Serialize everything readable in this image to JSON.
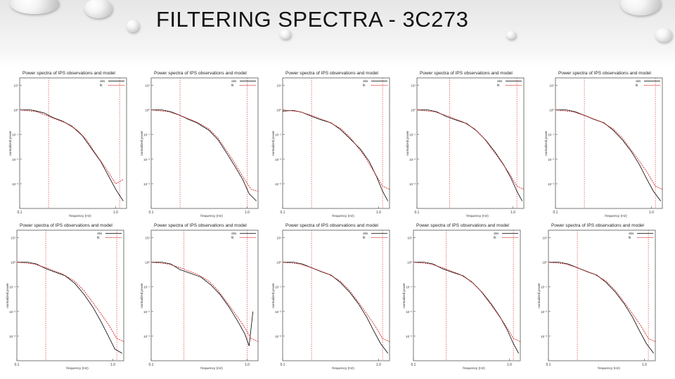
{
  "slide": {
    "title": "FILTERING SPECTRA - 3C273"
  },
  "legend": {
    "obs": "obs",
    "fit": "fit"
  },
  "colors": {
    "obs": "#000000",
    "fit": "#d42020",
    "frame": "#555555"
  },
  "common": {
    "plot_title": "Power spectra of IPS observations and model",
    "xlabel": "frequency (Hz)",
    "ylabel": "normalized power",
    "xtick_labels": [
      "0.1",
      "1.0"
    ]
  },
  "chart_data": [
    {
      "type": "line",
      "x_scale": "log",
      "y_scale": "log",
      "xlim": [
        0.1,
        1.3
      ],
      "ylim": [
        0.0001,
        20
      ],
      "ytick_labels": [
        "10¹",
        "10⁰",
        "10⁻¹",
        "10⁻²",
        "10⁻³"
      ],
      "cutoff_low": 0.2,
      "cutoff_high": 1.1,
      "series": [
        {
          "name": "obs",
          "x": [
            0.1,
            0.13,
            0.15,
            0.18,
            0.22,
            0.28,
            0.35,
            0.45,
            0.55,
            0.7,
            0.85,
            1.0,
            1.2
          ],
          "y": [
            1.0,
            1.0,
            0.9,
            0.75,
            0.5,
            0.35,
            0.22,
            0.09,
            0.03,
            0.008,
            0.002,
            0.0006,
            0.0002
          ]
        },
        {
          "name": "fit",
          "x": [
            0.1,
            0.15,
            0.2,
            0.3,
            0.4,
            0.5,
            0.6,
            0.8,
            1.0,
            1.2
          ],
          "y": [
            1.0,
            0.85,
            0.55,
            0.3,
            0.15,
            0.06,
            0.02,
            0.004,
            0.001,
            0.0015
          ]
        }
      ]
    },
    {
      "type": "line",
      "x_scale": "log",
      "y_scale": "log",
      "xlim": [
        0.1,
        1.3
      ],
      "ylim": [
        0.0001,
        20
      ],
      "ytick_labels": [
        "10¹",
        "10⁰",
        "10⁻¹",
        "10⁻²",
        "10⁻³"
      ],
      "cutoff_low": 0.2,
      "cutoff_high": 1.0,
      "series": [
        {
          "name": "obs",
          "x": [
            0.1,
            0.13,
            0.16,
            0.2,
            0.25,
            0.3,
            0.4,
            0.5,
            0.6,
            0.75,
            0.9,
            1.05,
            1.25
          ],
          "y": [
            1.0,
            1.0,
            0.85,
            0.6,
            0.4,
            0.3,
            0.15,
            0.06,
            0.02,
            0.005,
            0.0015,
            0.0004,
            0.0002
          ]
        },
        {
          "name": "fit",
          "x": [
            0.1,
            0.15,
            0.2,
            0.3,
            0.4,
            0.5,
            0.7,
            0.9,
            1.1,
            1.3
          ],
          "y": [
            1.0,
            0.85,
            0.6,
            0.32,
            0.17,
            0.07,
            0.01,
            0.002,
            0.0006,
            0.0005
          ]
        }
      ]
    },
    {
      "type": "line",
      "x_scale": "log",
      "y_scale": "log",
      "xlim": [
        0.1,
        1.3
      ],
      "ylim": [
        0.0001,
        20
      ],
      "ytick_labels": [
        "10¹",
        "10⁰",
        "10⁻¹",
        "10⁻²",
        "10⁻³"
      ],
      "cutoff_low": 0.2,
      "cutoff_high": 1.1,
      "series": [
        {
          "name": "obs",
          "x": [
            0.1,
            0.13,
            0.16,
            0.2,
            0.25,
            0.32,
            0.4,
            0.5,
            0.65,
            0.8,
            0.95,
            1.1,
            1.25
          ],
          "y": [
            0.9,
            0.95,
            0.8,
            0.55,
            0.4,
            0.3,
            0.16,
            0.07,
            0.025,
            0.008,
            0.002,
            0.0005,
            0.0002
          ]
        },
        {
          "name": "fit",
          "x": [
            0.1,
            0.15,
            0.2,
            0.3,
            0.4,
            0.5,
            0.7,
            0.9,
            1.1,
            1.3
          ],
          "y": [
            1.0,
            0.85,
            0.6,
            0.33,
            0.18,
            0.08,
            0.015,
            0.003,
            0.0008,
            0.0006
          ]
        }
      ]
    },
    {
      "type": "line",
      "x_scale": "log",
      "y_scale": "log",
      "xlim": [
        0.1,
        1.3
      ],
      "ylim": [
        0.0001,
        20
      ],
      "ytick_labels": [
        "10¹",
        "10⁰",
        "10⁻¹",
        "10⁻²",
        "10⁻³"
      ],
      "cutoff_low": 0.22,
      "cutoff_high": 1.1,
      "series": [
        {
          "name": "obs",
          "x": [
            0.1,
            0.13,
            0.16,
            0.2,
            0.26,
            0.33,
            0.42,
            0.52,
            0.65,
            0.8,
            0.95,
            1.1,
            1.25
          ],
          "y": [
            1.0,
            1.0,
            0.85,
            0.55,
            0.38,
            0.28,
            0.14,
            0.06,
            0.02,
            0.006,
            0.0018,
            0.0005,
            0.0002
          ]
        },
        {
          "name": "fit",
          "x": [
            0.1,
            0.15,
            0.2,
            0.3,
            0.4,
            0.5,
            0.7,
            0.9,
            1.1,
            1.3
          ],
          "y": [
            1.0,
            0.85,
            0.6,
            0.33,
            0.17,
            0.07,
            0.012,
            0.003,
            0.0008,
            0.0006
          ]
        }
      ]
    },
    {
      "type": "line",
      "x_scale": "log",
      "y_scale": "log",
      "xlim": [
        0.1,
        1.3
      ],
      "ylim": [
        0.0001,
        20
      ],
      "ytick_labels": [
        "10¹",
        "10⁰",
        "10⁻¹",
        "10⁻²",
        "10⁻³"
      ],
      "cutoff_low": 0.2,
      "cutoff_high": 1.1,
      "series": [
        {
          "name": "obs",
          "x": [
            0.1,
            0.13,
            0.16,
            0.2,
            0.25,
            0.32,
            0.4,
            0.5,
            0.62,
            0.75,
            0.9,
            1.05,
            1.25
          ],
          "y": [
            1.0,
            1.0,
            0.85,
            0.6,
            0.42,
            0.3,
            0.15,
            0.06,
            0.02,
            0.006,
            0.0015,
            0.0005,
            0.0002
          ]
        },
        {
          "name": "fit",
          "x": [
            0.1,
            0.15,
            0.2,
            0.3,
            0.4,
            0.5,
            0.7,
            0.9,
            1.1,
            1.3
          ],
          "y": [
            1.0,
            0.85,
            0.6,
            0.33,
            0.17,
            0.07,
            0.012,
            0.003,
            0.0008,
            0.0006
          ]
        }
      ]
    },
    {
      "type": "line",
      "x_scale": "log",
      "y_scale": "log",
      "xlim": [
        0.1,
        1.3
      ],
      "ylim": [
        0.0001,
        20
      ],
      "ytick_labels": [
        "10¹",
        "10⁰",
        "10⁻¹",
        "10⁻²",
        "10⁻³"
      ],
      "cutoff_low": 0.2,
      "cutoff_high": 1.1,
      "series": [
        {
          "name": "obs",
          "x": [
            0.1,
            0.13,
            0.16,
            0.2,
            0.25,
            0.32,
            0.4,
            0.5,
            0.62,
            0.75,
            0.9,
            1.05,
            1.25
          ],
          "y": [
            1.0,
            1.0,
            0.85,
            0.55,
            0.4,
            0.28,
            0.14,
            0.05,
            0.015,
            0.004,
            0.001,
            0.0003,
            0.0002
          ]
        },
        {
          "name": "fit",
          "x": [
            0.1,
            0.15,
            0.2,
            0.3,
            0.4,
            0.5,
            0.7,
            0.9,
            1.1,
            1.3
          ],
          "y": [
            1.0,
            0.85,
            0.6,
            0.33,
            0.17,
            0.07,
            0.012,
            0.003,
            0.0008,
            0.0006
          ]
        }
      ]
    },
    {
      "type": "line",
      "x_scale": "log",
      "y_scale": "log",
      "xlim": [
        0.1,
        1.3
      ],
      "ylim": [
        0.0001,
        20
      ],
      "ytick_labels": [
        "10¹",
        "10⁰",
        "10⁻¹",
        "10⁻²",
        "10⁻³"
      ],
      "cutoff_low": 0.22,
      "cutoff_high": 1.0,
      "series": [
        {
          "name": "obs",
          "x": [
            0.1,
            0.13,
            0.16,
            0.2,
            0.26,
            0.33,
            0.42,
            0.52,
            0.65,
            0.8,
            0.95,
            1.05,
            1.15
          ],
          "y": [
            1.0,
            1.0,
            0.85,
            0.5,
            0.35,
            0.25,
            0.12,
            0.05,
            0.015,
            0.004,
            0.0012,
            0.0004,
            0.01
          ]
        },
        {
          "name": "fit",
          "x": [
            0.1,
            0.15,
            0.2,
            0.3,
            0.4,
            0.5,
            0.7,
            0.9,
            1.1,
            1.3
          ],
          "y": [
            1.0,
            0.85,
            0.6,
            0.33,
            0.17,
            0.07,
            0.012,
            0.003,
            0.0008,
            0.0006
          ]
        }
      ]
    },
    {
      "type": "line",
      "x_scale": "log",
      "y_scale": "log",
      "xlim": [
        0.1,
        1.3
      ],
      "ylim": [
        0.0001,
        20
      ],
      "ytick_labels": [
        "10¹",
        "10⁰",
        "10⁻¹",
        "10⁻²",
        "10⁻³"
      ],
      "cutoff_low": 0.2,
      "cutoff_high": 1.1,
      "series": [
        {
          "name": "obs",
          "x": [
            0.1,
            0.13,
            0.16,
            0.2,
            0.25,
            0.32,
            0.4,
            0.5,
            0.62,
            0.75,
            0.9,
            1.05,
            1.25
          ],
          "y": [
            1.0,
            1.0,
            0.85,
            0.6,
            0.42,
            0.3,
            0.15,
            0.06,
            0.02,
            0.006,
            0.0015,
            0.0005,
            0.0002
          ]
        },
        {
          "name": "fit",
          "x": [
            0.1,
            0.15,
            0.2,
            0.3,
            0.4,
            0.5,
            0.7,
            0.9,
            1.1,
            1.3
          ],
          "y": [
            1.0,
            0.85,
            0.6,
            0.33,
            0.17,
            0.07,
            0.012,
            0.003,
            0.0008,
            0.0006
          ]
        }
      ]
    },
    {
      "type": "line",
      "x_scale": "log",
      "y_scale": "log",
      "xlim": [
        0.1,
        1.3
      ],
      "ylim": [
        0.0001,
        20
      ],
      "ytick_labels": [
        "10¹",
        "10⁰",
        "10⁻¹",
        "10⁻²",
        "10⁻³"
      ],
      "cutoff_low": 0.22,
      "cutoff_high": 1.1,
      "series": [
        {
          "name": "obs",
          "x": [
            0.1,
            0.13,
            0.16,
            0.2,
            0.26,
            0.33,
            0.42,
            0.52,
            0.65,
            0.8,
            0.95,
            1.1,
            1.25
          ],
          "y": [
            1.0,
            1.0,
            0.85,
            0.55,
            0.38,
            0.28,
            0.14,
            0.06,
            0.02,
            0.006,
            0.0018,
            0.0005,
            0.0002
          ]
        },
        {
          "name": "fit",
          "x": [
            0.1,
            0.15,
            0.2,
            0.3,
            0.4,
            0.5,
            0.7,
            0.9,
            1.1,
            1.3
          ],
          "y": [
            1.0,
            0.85,
            0.6,
            0.33,
            0.17,
            0.07,
            0.012,
            0.003,
            0.0008,
            0.0006
          ]
        }
      ]
    },
    {
      "type": "line",
      "x_scale": "log",
      "y_scale": "log",
      "xlim": [
        0.1,
        1.3
      ],
      "ylim": [
        0.0001,
        20
      ],
      "ytick_labels": [
        "10¹",
        "10⁰",
        "10⁻¹",
        "10⁻²",
        "10⁻³"
      ],
      "cutoff_low": 0.2,
      "cutoff_high": 1.1,
      "series": [
        {
          "name": "obs",
          "x": [
            0.1,
            0.13,
            0.16,
            0.2,
            0.25,
            0.32,
            0.4,
            0.5,
            0.62,
            0.75,
            0.9,
            1.05,
            1.25
          ],
          "y": [
            1.0,
            1.0,
            0.85,
            0.6,
            0.42,
            0.3,
            0.15,
            0.06,
            0.02,
            0.006,
            0.0015,
            0.0005,
            0.0002
          ]
        },
        {
          "name": "fit",
          "x": [
            0.1,
            0.15,
            0.2,
            0.3,
            0.4,
            0.5,
            0.7,
            0.9,
            1.1,
            1.3
          ],
          "y": [
            1.0,
            0.85,
            0.6,
            0.33,
            0.17,
            0.07,
            0.012,
            0.003,
            0.0008,
            0.0006
          ]
        }
      ]
    }
  ]
}
